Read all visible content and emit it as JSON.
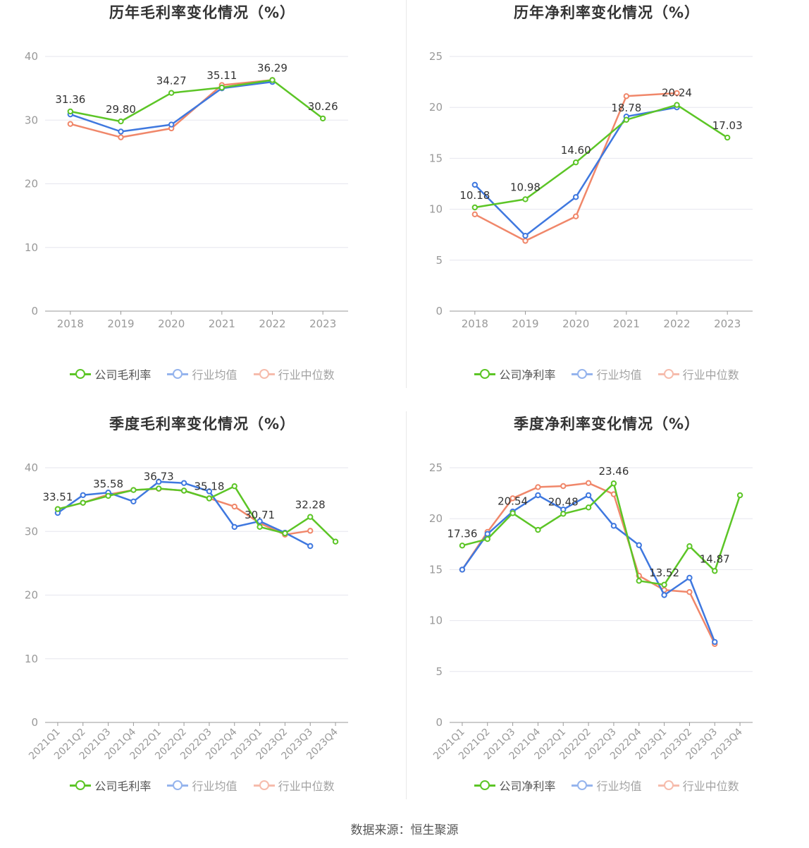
{
  "colors": {
    "company": "#5cc526",
    "avg": "#3f78df",
    "median": "#f0876a",
    "grid": "#e6e6ee",
    "axis": "#999999",
    "tick": "#999999",
    "label": "#333333"
  },
  "source": "数据来源：恒生聚源",
  "chart_data": [
    {
      "type": "line",
      "title": "历年毛利率变化情况（%）",
      "categories": [
        "2018",
        "2019",
        "2020",
        "2021",
        "2022",
        "2023"
      ],
      "ylim": [
        0,
        40
      ],
      "yticks": [
        "0",
        "10",
        "20",
        "30",
        "40"
      ],
      "grid": true,
      "legend_position": "bottom",
      "series": [
        {
          "name": "公司毛利率",
          "key": "company",
          "values": [
            31.36,
            29.8,
            34.27,
            35.11,
            36.29,
            30.26
          ],
          "labels": [
            "31.36",
            "29.80",
            "34.27",
            "35.11",
            "36.29",
            "30.26"
          ]
        },
        {
          "name": "行业均值",
          "key": "avg",
          "values": [
            30.9,
            28.2,
            29.3,
            35.0,
            36.0,
            null
          ]
        },
        {
          "name": "行业中位数",
          "key": "median",
          "values": [
            29.4,
            27.3,
            28.7,
            35.5,
            36.3,
            null
          ]
        }
      ]
    },
    {
      "type": "line",
      "title": "历年净利率变化情况（%）",
      "categories": [
        "2018",
        "2019",
        "2020",
        "2021",
        "2022",
        "2023"
      ],
      "ylim": [
        0,
        25
      ],
      "yticks": [
        "0",
        "5",
        "10",
        "15",
        "20",
        "25"
      ],
      "grid": true,
      "legend_position": "bottom",
      "series": [
        {
          "name": "公司净利率",
          "key": "company",
          "values": [
            10.18,
            10.98,
            14.6,
            18.78,
            20.24,
            17.03
          ],
          "labels": [
            "10.18",
            "10.98",
            "14.60",
            "18.78",
            "20.24",
            "17.03"
          ]
        },
        {
          "name": "行业均值",
          "key": "avg",
          "values": [
            12.4,
            7.4,
            11.2,
            19.1,
            20.0,
            null
          ]
        },
        {
          "name": "行业中位数",
          "key": "median",
          "values": [
            9.5,
            6.9,
            9.3,
            21.1,
            21.4,
            null
          ]
        }
      ]
    },
    {
      "type": "line",
      "title": "季度毛利率变化情况（%）",
      "categories": [
        "2021Q1",
        "2021Q2",
        "2021Q3",
        "2021Q4",
        "2022Q1",
        "2022Q2",
        "2022Q3",
        "2022Q4",
        "2023Q1",
        "2023Q2",
        "2023Q3",
        "2023Q4"
      ],
      "ylim": [
        0,
        40
      ],
      "yticks": [
        "0",
        "10",
        "20",
        "30",
        "40"
      ],
      "grid": true,
      "legend_position": "bottom",
      "series": [
        {
          "name": "公司毛利率",
          "key": "company",
          "values": [
            33.51,
            34.5,
            35.58,
            36.5,
            36.73,
            36.4,
            35.18,
            37.1,
            30.71,
            29.7,
            32.28,
            28.4
          ],
          "labels": [
            "33.51",
            "",
            "35.58",
            "",
            "36.73",
            "",
            "35.18",
            "",
            "30.71",
            "",
            "32.28",
            ""
          ]
        },
        {
          "name": "行业均值",
          "key": "avg",
          "values": [
            32.9,
            35.7,
            36.1,
            34.7,
            37.8,
            37.6,
            36.3,
            30.7,
            31.6,
            29.8,
            27.7,
            null
          ]
        },
        {
          "name": "行业中位数",
          "key": "median",
          "values": [
            33.5,
            34.5,
            35.8,
            36.5,
            36.7,
            36.4,
            35.2,
            33.9,
            31.3,
            29.5,
            30.1,
            null
          ]
        }
      ]
    },
    {
      "type": "line",
      "title": "季度净利率变化情况（%）",
      "categories": [
        "2021Q1",
        "2021Q2",
        "2021Q3",
        "2021Q4",
        "2022Q1",
        "2022Q2",
        "2022Q3",
        "2022Q4",
        "2023Q1",
        "2023Q2",
        "2023Q3",
        "2023Q4"
      ],
      "ylim": [
        0,
        25
      ],
      "yticks": [
        "0",
        "5",
        "10",
        "15",
        "20",
        "25"
      ],
      "grid": true,
      "legend_position": "bottom",
      "series": [
        {
          "name": "公司净利率",
          "key": "company",
          "values": [
            17.36,
            18.0,
            20.54,
            18.9,
            20.48,
            21.1,
            23.46,
            13.9,
            13.52,
            17.3,
            14.87,
            22.3
          ],
          "labels": [
            "17.36",
            "",
            "20.54",
            "",
            "20.48",
            "",
            "23.46",
            "",
            "13.52",
            "",
            "14.87",
            ""
          ]
        },
        {
          "name": "行业均值",
          "key": "avg",
          "values": [
            15.0,
            18.5,
            20.7,
            22.3,
            20.9,
            22.3,
            19.3,
            17.4,
            12.5,
            14.2,
            7.9,
            null
          ]
        },
        {
          "name": "行业中位数",
          "key": "median",
          "values": [
            15.0,
            18.7,
            22.0,
            23.1,
            23.2,
            23.5,
            22.4,
            14.4,
            13.0,
            12.8,
            7.7,
            null
          ]
        }
      ]
    }
  ]
}
